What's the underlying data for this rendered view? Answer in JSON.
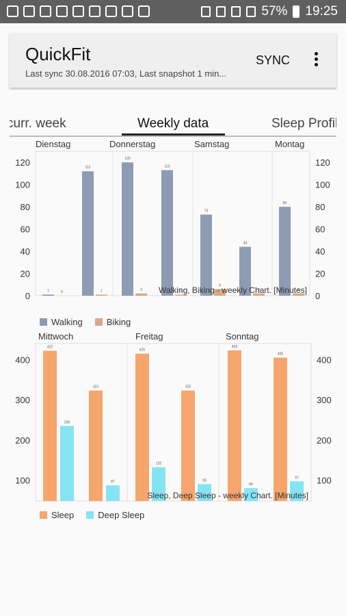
{
  "status_bar": {
    "battery": "57%",
    "time": "19:25",
    "left_icons": [
      "signal-icon",
      "mail-icon",
      "gallery-icon",
      "image-icon",
      "pdf-icon",
      "target-icon",
      "photo-icon",
      "warning-icon",
      "inbox-icon"
    ],
    "right_icons": [
      "bluetooth-icon",
      "mute-icon",
      "wifi-icon",
      "signal-bars-icon"
    ]
  },
  "app_bar": {
    "title": "QuickFit",
    "subtitle": "Last sync 30.08.2016 07:03, Last snapshot 1 min...",
    "sync_label": "SYNC",
    "more_icon": "more-vert-icon"
  },
  "tabs": [
    {
      "label": "curr. week",
      "active": false
    },
    {
      "label": "Weekly data",
      "active": true
    },
    {
      "label": "Sleep Profil",
      "active": false
    }
  ],
  "chart_data": [
    {
      "type": "bar",
      "title": "Walking, Biking - weekly Chart. [Minutes]",
      "top_labels": [
        "Dienstag",
        "Donnerstag",
        "Samstag",
        "Montag"
      ],
      "series": [
        {
          "name": "Walking",
          "color": "#8e9bb4",
          "values": [
            1,
            112,
            120,
            113,
            73,
            44,
            80
          ]
        },
        {
          "name": "Biking",
          "color": "#d9a888",
          "values": [
            0,
            1,
            2,
            1,
            6,
            2,
            2
          ]
        }
      ],
      "ylim": [
        0,
        130
      ],
      "yticks": [
        "0",
        "20",
        "40",
        "60",
        "80",
        "100",
        "120"
      ]
    },
    {
      "type": "bar",
      "title": "Sleep, Deep Sleep - weekly Chart. [Minutes]",
      "top_labels": [
        "Mittwoch",
        "Freitag",
        "Sonntag"
      ],
      "series": [
        {
          "name": "Sleep",
          "color": "#f6a56c",
          "values": [
            422,
            323,
            415,
            323,
            423,
            405
          ]
        },
        {
          "name": "Deep Sleep",
          "color": "#84e4f4",
          "values": [
            235,
            87,
            132,
            90,
            80,
            97
          ]
        }
      ],
      "ylim": [
        48,
        440
      ],
      "yticks": [
        "100",
        "200",
        "300",
        "400"
      ]
    }
  ]
}
